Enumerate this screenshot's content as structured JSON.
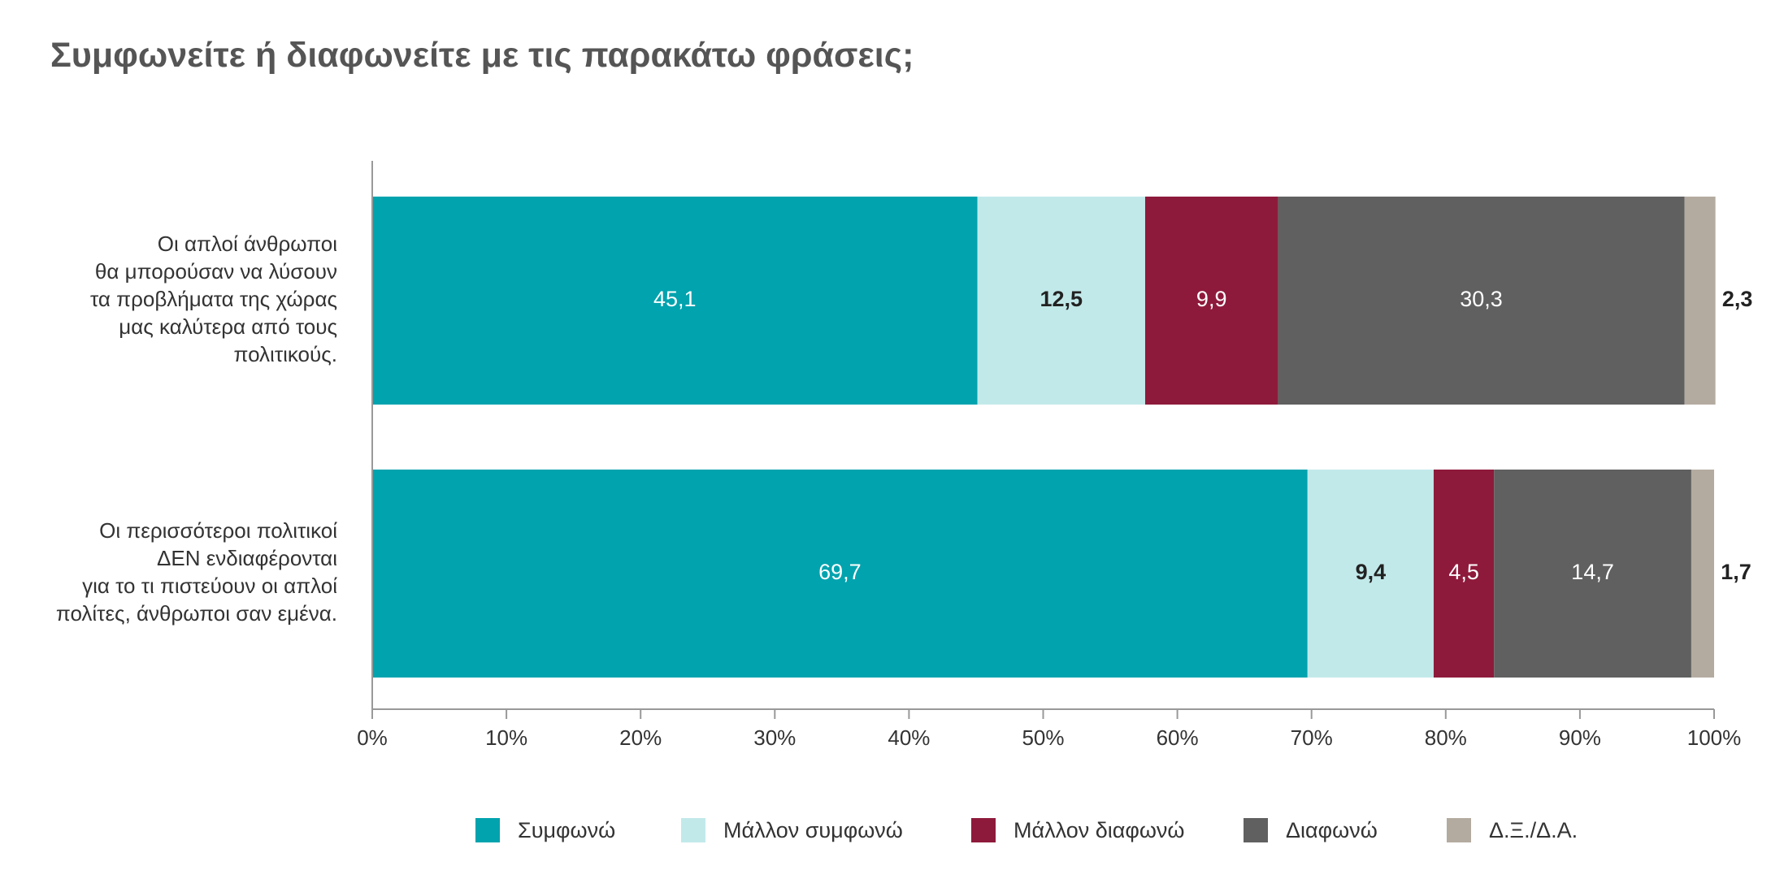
{
  "title": "Συμφωνείτε ή διαφωνείτε με τις παρακάτω φράσεις;",
  "colors": {
    "agree": "#00a3ae",
    "rather_agree": "#c2e9ea",
    "rather_disagree": "#8e1a3b",
    "disagree": "#606060",
    "dk_na": "#b4aba0",
    "axis": "#999999"
  },
  "chart_data": {
    "type": "bar",
    "orientation": "horizontal",
    "stacked": true,
    "title": "Συμφωνείτε ή διαφωνείτε με τις παρακάτω φράσεις;",
    "categories": [
      [
        "Οι απλοί άνθρωποι",
        "θα μπορούσαν να λύσουν",
        "τα προβλήματα της χώρας",
        "μας καλύτερα από τους",
        "πολιτικούς."
      ],
      [
        "Οι περισσότεροι πολιτικοί",
        "ΔΕΝ ενδιαφέρονται",
        "για το τι πιστεύουν οι  απλοί",
        "πολίτες, άνθρωποι σαν εμένα."
      ]
    ],
    "series": [
      {
        "name": "Συμφωνώ",
        "color": "#00a3ae",
        "label_color": "#ffffff",
        "values": [
          45.1,
          69.7
        ],
        "labels": [
          "45,1",
          "69,7"
        ]
      },
      {
        "name": "Μάλλον συμφωνώ",
        "color": "#c2e9ea",
        "label_color": "#222222",
        "values": [
          12.5,
          9.4
        ],
        "labels": [
          "12,5",
          "9,4"
        ]
      },
      {
        "name": "Μάλλον διαφωνώ",
        "color": "#8e1a3b",
        "label_color": "#ffffff",
        "values": [
          9.9,
          4.5
        ],
        "labels": [
          "9,9",
          "4,5"
        ]
      },
      {
        "name": "Διαφωνώ",
        "color": "#606060",
        "label_color": "#ffffff",
        "values": [
          30.3,
          14.7
        ],
        "labels": [
          "30,3",
          "14,7"
        ]
      },
      {
        "name": "Δ.Ξ./Δ.Α.",
        "color": "#b4aba0",
        "label_color": "#222222",
        "values": [
          2.3,
          1.7
        ],
        "labels": [
          "2,3",
          "1,7"
        ],
        "label_outside": true
      }
    ],
    "xlim": [
      0,
      100
    ],
    "x_ticks": [
      "0%",
      "10%",
      "20%",
      "30%",
      "40%",
      "50%",
      "60%",
      "70%",
      "80%",
      "90%",
      "100%"
    ],
    "grid": false,
    "legend_position": "bottom"
  },
  "legend": [
    {
      "label": "Συμφωνώ",
      "color": "#00a3ae"
    },
    {
      "label": "Μάλλον συμφωνώ",
      "color": "#c2e9ea"
    },
    {
      "label": "Μάλλον διαφωνώ",
      "color": "#8e1a3b"
    },
    {
      "label": "Διαφωνώ",
      "color": "#606060"
    },
    {
      "label": "Δ.Ξ./Δ.Α.",
      "color": "#b4aba0"
    }
  ]
}
